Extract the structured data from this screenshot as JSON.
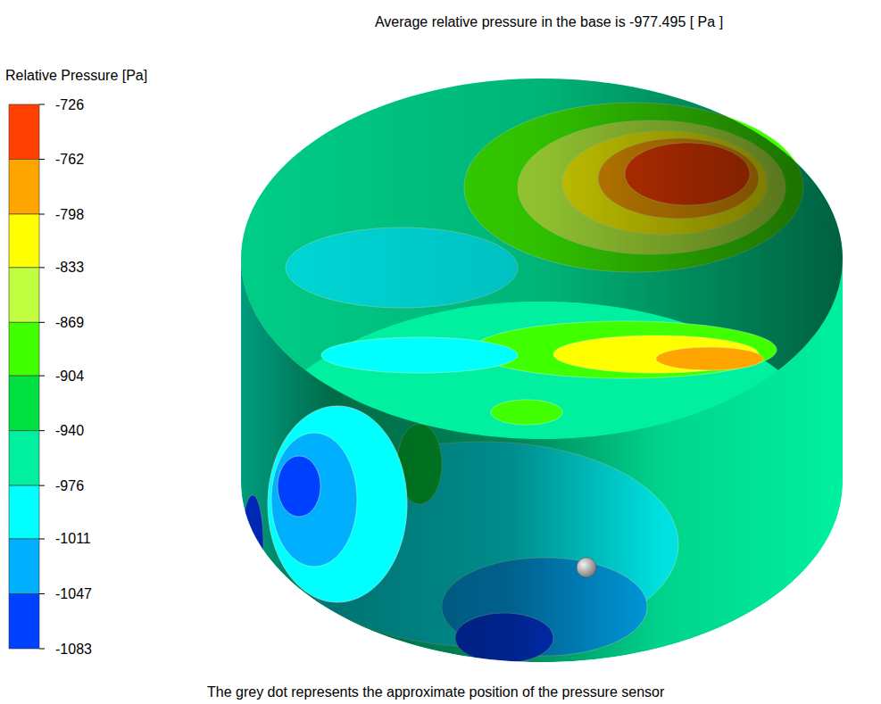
{
  "chart_data": {
    "type": "contour",
    "title": "Average relative pressure in the base is -977.495 [ Pa ]",
    "colorbar_label": "Relative Pressure [Pa]",
    "colorbar_lim": [
      -1083,
      -726
    ],
    "colorbar_ticks": [
      -726,
      -762,
      -798,
      -833,
      -869,
      -904,
      -940,
      -976,
      -1011,
      -1047,
      -1083
    ],
    "colors": [
      "#ff4000",
      "#ffa500",
      "#ffff00",
      "#bfff3f",
      "#40ff00",
      "#00e040",
      "#00f0a0",
      "#00ffff",
      "#00b0ff",
      "#0040ff"
    ],
    "annotations": [
      "The grey dot represents the approximate position of the pressure sensor"
    ],
    "surface_values": [
      -950,
      -990,
      -885,
      -850,
      -815,
      -780,
      -740,
      -955,
      -885,
      -815,
      -775,
      -990,
      -880,
      -955,
      -995,
      -1030,
      -1065,
      -920,
      -1065,
      -990,
      -1030,
      -1065
    ]
  }
}
